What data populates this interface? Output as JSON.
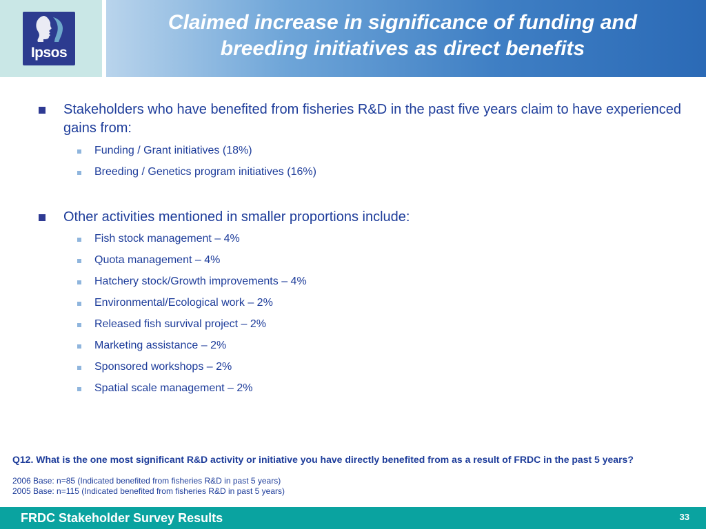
{
  "logo": {
    "text": "Ipsos"
  },
  "title": {
    "line1": "Claimed increase in significance of funding and",
    "line2": "breeding initiatives as direct benefits"
  },
  "sections": [
    {
      "heading": "Stakeholders who have benefited from fisheries R&D in the past five years claim to have experienced gains from:",
      "items": [
        "Funding / Grant initiatives (18%)",
        "Breeding / Genetics program initiatives (16%)"
      ]
    },
    {
      "heading": "Other activities mentioned in smaller proportions include:",
      "items": [
        "Fish stock management – 4%",
        "Quota management – 4%",
        "Hatchery stock/Growth improvements – 4%",
        "Environmental/Ecological work – 2%",
        "Released fish survival project – 2%",
        "Marketing assistance – 2%",
        "Sponsored workshops – 2%",
        "Spatial scale management – 2%"
      ]
    }
  ],
  "footnote": {
    "question": "Q12. What is the one most significant R&D activity or initiative you have directly benefited from as a result of FRDC in the past 5 years?",
    "base_2006": "2006 Base: n=85 (Indicated benefited from fisheries R&D in past 5 years)",
    "base_2005": "2005 Base: n=115 (Indicated benefited from fisheries R&D in past 5 years)"
  },
  "footer": {
    "label": "FRDC Stakeholder Survey Results",
    "page": "33"
  }
}
